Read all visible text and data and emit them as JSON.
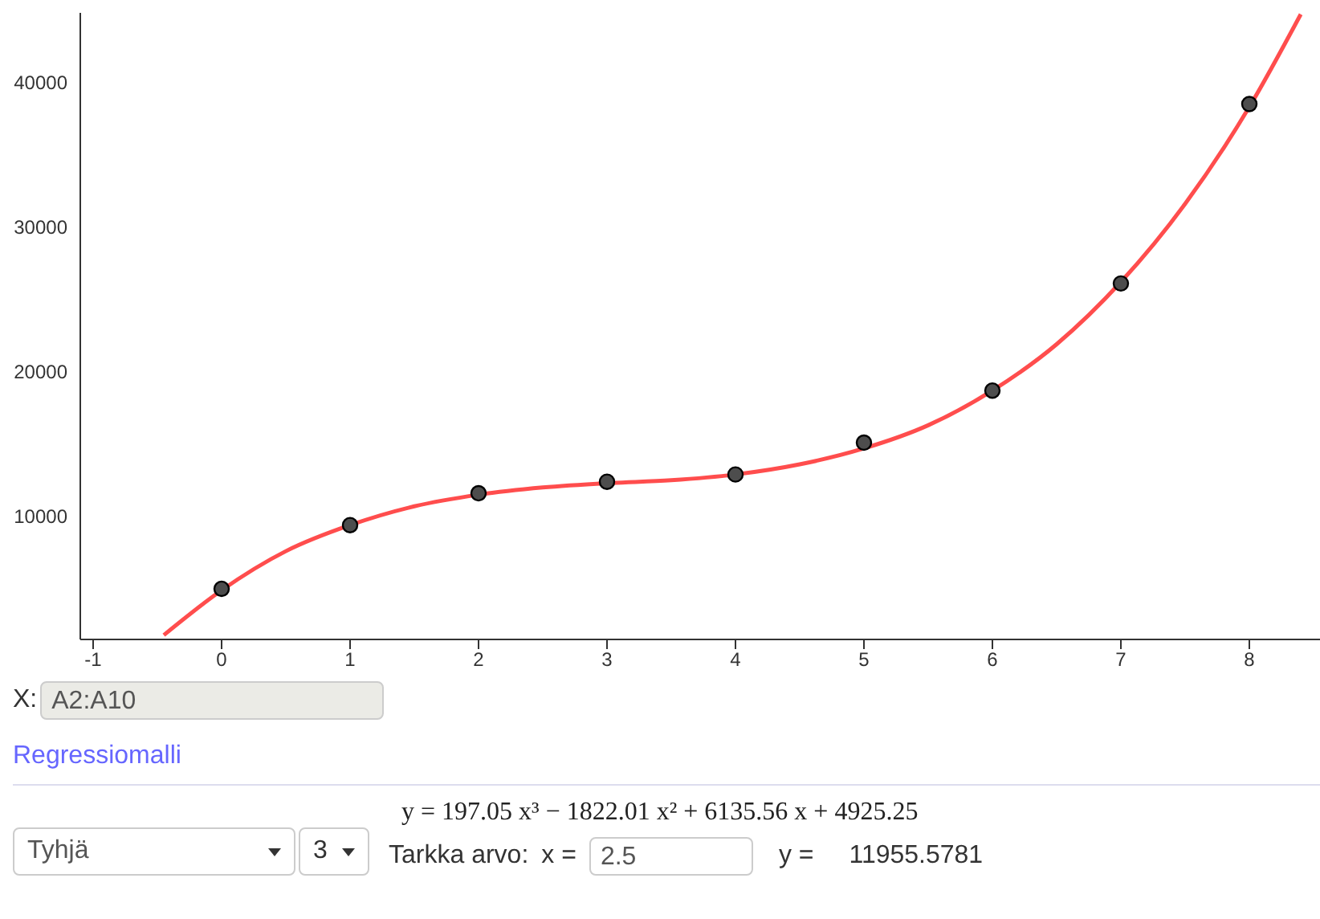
{
  "chart_data": {
    "type": "scatter",
    "x": [
      0,
      1,
      2,
      3,
      4,
      5,
      6,
      7,
      8
    ],
    "series": [
      {
        "color": "#4d4d4d",
        "marker": "circle",
        "values": [
          5000,
          9400,
          11600,
          12400,
          12900,
          15100,
          18700,
          26100,
          38500
        ]
      },
      {
        "type": "line",
        "color": "#ff4d4d",
        "marker": "none",
        "x": [
          -0.45,
          0,
          0.5,
          1,
          1.5,
          2,
          2.5,
          3,
          3.5,
          4,
          4.5,
          5,
          5.5,
          6,
          6.5,
          7,
          7.5,
          8,
          8.4
        ],
        "values": [
          1800,
          4900,
          7600,
          9400,
          10700,
          11500,
          12000,
          12300,
          12500,
          12900,
          13600,
          14700,
          16300,
          18700,
          21900,
          26200,
          31600,
          38300,
          44700
        ]
      }
    ],
    "xlim": [
      -1.1,
      8.55
    ],
    "xticks": [
      -1,
      0,
      1,
      2,
      3,
      4,
      5,
      6,
      7,
      8
    ],
    "ylim": [
      1500,
      44800
    ],
    "yticks": [
      10000,
      20000,
      30000,
      40000
    ],
    "grid": false,
    "legend": false,
    "line_style": "solid",
    "annotations": [
      "X:",
      "A2:A10",
      "Regressiomalli",
      "Tyhjä",
      "3",
      "y = 197.05 x³ − 1822.01 x² + 6135.56 x + 4925.25",
      "Tarkka arvo:",
      "x =",
      "2.5",
      "y =",
      "11955.5781"
    ]
  }
}
